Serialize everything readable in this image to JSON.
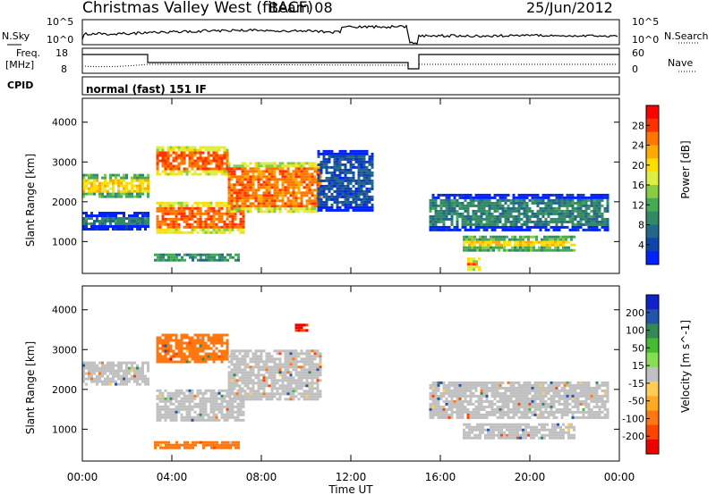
{
  "header": {
    "title": "Christmas Valley West (fitACF)",
    "beam": "Beam 08",
    "date": "25/Jun/2012"
  },
  "status_panels": {
    "nsky_label": "N.Sky",
    "nsearch_label": "N.Search",
    "count_ticks": [
      "10^5",
      "10^0"
    ],
    "freq_label_1": "Freq.",
    "freq_label_2": "[MHz]",
    "freq_ticks": [
      "18",
      "8"
    ],
    "nave_label": "Nave",
    "nave_ticks": [
      "60",
      "0"
    ],
    "cpid_label": "CPID",
    "cpid_value": "normal (fast) 151 IF"
  },
  "panels": {
    "ylabel": "Slant Range [km]",
    "yticks": [
      "4000",
      "3000",
      "2000",
      "1000"
    ],
    "xlabel": "Time UT",
    "xticks": [
      "00:00",
      "04:00",
      "08:00",
      "12:00",
      "16:00",
      "20:00",
      "00:00"
    ]
  },
  "power_colorbar": {
    "label": "Power [dB]",
    "ticks": [
      "28",
      "24",
      "20",
      "16",
      "12",
      "8",
      "4"
    ],
    "colors": [
      "#ff0000",
      "#ff3300",
      "#ff7700",
      "#ffaa00",
      "#ffdd00",
      "#ddee44",
      "#88cc44",
      "#44aa55",
      "#338866",
      "#226688",
      "#1144aa",
      "#0022ff"
    ]
  },
  "velocity_colorbar": {
    "label": "Velocity [m s^-1]",
    "ticks": [
      "200",
      "100",
      "50",
      "15",
      "-15",
      "-50",
      "-100",
      "-200"
    ],
    "colors": [
      "#1122cc",
      "#2255aa",
      "#338855",
      "#44bb33",
      "#88dd55",
      "#c0c0c0",
      "#ffcc55",
      "#ffaa22",
      "#ff7711",
      "#ff4400",
      "#ee0000"
    ]
  },
  "chart_data": {
    "type": "heatmap",
    "x_unit": "hours UT",
    "xlim": [
      0,
      24
    ],
    "ylim": [
      200,
      4600
    ],
    "power_regions": [
      {
        "t0": 0,
        "t1": 3,
        "r0": 2100,
        "r1": 2700,
        "level": 22
      },
      {
        "t0": 0,
        "t1": 3,
        "r0": 1300,
        "r1": 1750,
        "level": 10
      },
      {
        "t0": 3.3,
        "t1": 7.2,
        "r0": 1250,
        "r1": 2000,
        "level": 28
      },
      {
        "t0": 3.3,
        "t1": 6.5,
        "r0": 2700,
        "r1": 3400,
        "level": 28
      },
      {
        "t0": 6.5,
        "t1": 10.6,
        "r0": 1750,
        "r1": 3000,
        "level": 27
      },
      {
        "t0": 3.2,
        "t1": 7.0,
        "r0": 550,
        "r1": 700,
        "level": 20
      },
      {
        "t0": 10.5,
        "t1": 13,
        "r0": 1800,
        "r1": 3300,
        "level": 6
      },
      {
        "t0": 15.5,
        "t1": 23.5,
        "r0": 1300,
        "r1": 2200,
        "level": 10
      },
      {
        "t0": 17,
        "t1": 22,
        "r0": 800,
        "r1": 1150,
        "level": 22
      },
      {
        "t0": 17.2,
        "t1": 17.8,
        "r0": 300,
        "r1": 600,
        "level": 28
      }
    ],
    "velocity_regions": [
      {
        "t0": 0,
        "t1": 3,
        "r0": 2100,
        "r1": 2700,
        "v": 0
      },
      {
        "t0": 3.3,
        "t1": 7.2,
        "r0": 1250,
        "r1": 2000,
        "v": 0
      },
      {
        "t0": 3.3,
        "t1": 6.5,
        "r0": 2700,
        "r1": 3400,
        "v": -60
      },
      {
        "t0": 6.5,
        "t1": 10.6,
        "r0": 1750,
        "r1": 3000,
        "v": 0
      },
      {
        "t0": 3.2,
        "t1": 7.0,
        "r0": 550,
        "r1": 700,
        "v": -60
      },
      {
        "t0": 9.5,
        "t1": 10.0,
        "r0": 3450,
        "r1": 3650,
        "v": -200
      },
      {
        "t0": 15.5,
        "t1": 23.5,
        "r0": 1300,
        "r1": 2200,
        "v": 0
      },
      {
        "t0": 17,
        "t1": 22,
        "r0": 800,
        "r1": 1150,
        "v": 0
      }
    ]
  }
}
